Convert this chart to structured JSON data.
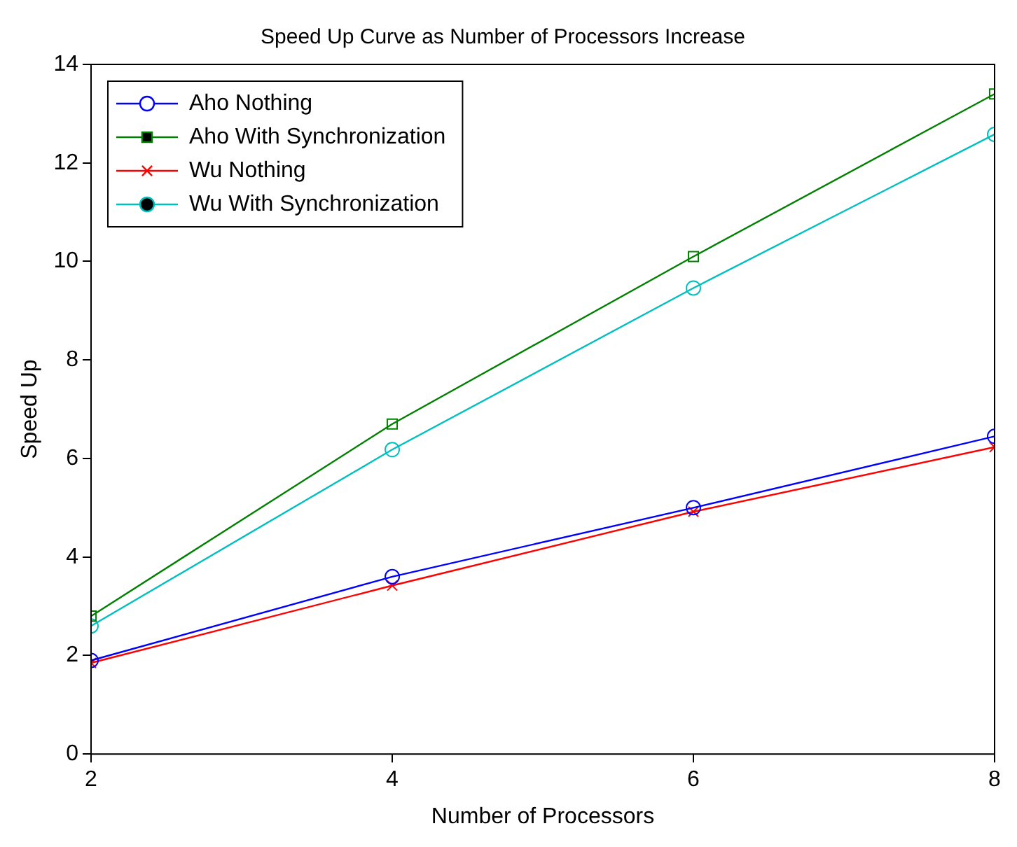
{
  "chart_data": {
    "type": "line",
    "title": "Speed Up Curve as Number of Processors Increase",
    "xlabel": "Number of Processors",
    "ylabel": "Speed Up",
    "x": [
      2,
      4,
      6,
      8
    ],
    "xlim": [
      2,
      8
    ],
    "xticks": [
      2,
      4,
      6,
      8
    ],
    "ylim": [
      0,
      14
    ],
    "yticks": [
      0,
      2,
      4,
      6,
      8,
      10,
      12,
      14
    ],
    "grid": false,
    "legend": "top left",
    "line_style": "solid",
    "series": [
      {
        "name": "Aho Nothing",
        "color": "#0000ff",
        "marker": "circle",
        "values": [
          1.9,
          3.6,
          5.0,
          6.45
        ]
      },
      {
        "name": "Aho With Synchronization",
        "color": "#008000",
        "marker": "square",
        "values": [
          2.8,
          6.7,
          10.1,
          13.4
        ]
      },
      {
        "name": "Wu Nothing",
        "color": "#ff0000",
        "marker": "cross",
        "values": [
          1.85,
          3.42,
          4.92,
          6.23
        ]
      },
      {
        "name": "Wu With Synchronization",
        "color": "#00bfbf",
        "marker": "circle",
        "values": [
          2.6,
          6.18,
          9.46,
          12.58
        ]
      }
    ]
  }
}
